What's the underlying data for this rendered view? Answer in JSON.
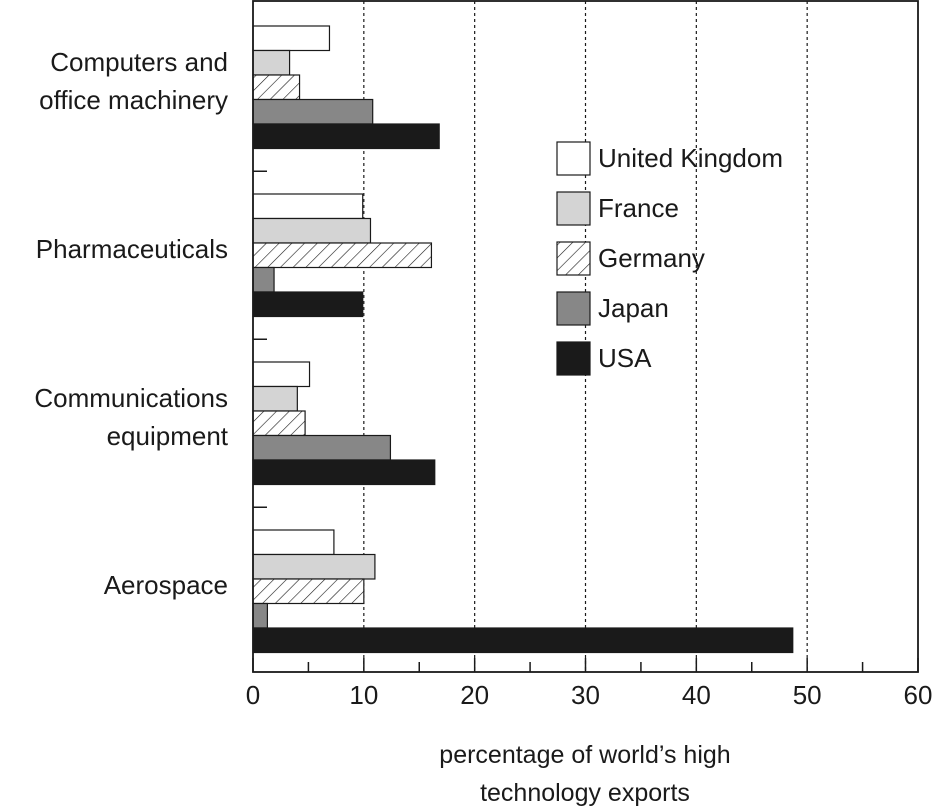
{
  "chart_data": {
    "type": "barh",
    "categories": [
      "Computers and office machinery",
      "Pharmaceuticals",
      "Communications equipment",
      "Aerospace"
    ],
    "series": [
      {
        "name": "United Kingdom",
        "color": "#ffffff",
        "values": [
          6.9,
          9.9,
          5.1,
          7.3
        ]
      },
      {
        "name": "France",
        "color": "#d4d4d4",
        "values": [
          3.3,
          10.6,
          4.0,
          11.0
        ]
      },
      {
        "name": "Germany",
        "color": "hatch",
        "values": [
          4.2,
          16.1,
          4.7,
          10.0
        ]
      },
      {
        "name": "Japan",
        "color": "#878787",
        "values": [
          10.8,
          1.9,
          12.4,
          1.3
        ]
      },
      {
        "name": "USA",
        "color": "#1a1a1a",
        "values": [
          16.8,
          9.9,
          16.4,
          48.7
        ]
      }
    ],
    "xlabel": "percentage of world’s high technology exports",
    "xlim": [
      0,
      60
    ],
    "xticks": [
      0,
      10,
      20,
      30,
      40,
      50,
      60
    ],
    "grid": true
  }
}
